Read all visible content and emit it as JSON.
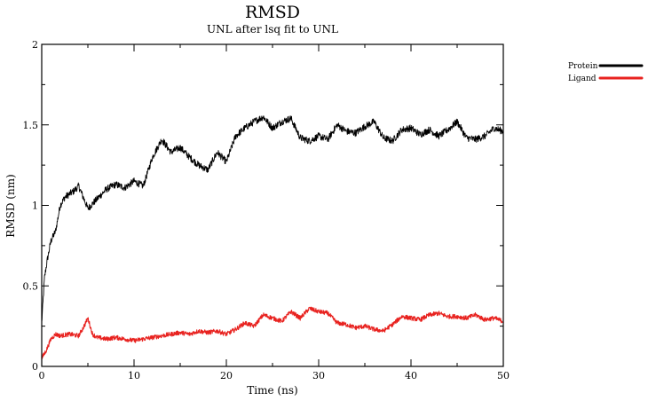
{
  "chart_data": {
    "type": "line",
    "title": "RMSD",
    "subtitle": "UNL after lsq fit to UNL",
    "xlabel": "Time (ns)",
    "ylabel": "RMSD (nm)",
    "xlim": [
      0,
      50
    ],
    "ylim": [
      0,
      2
    ],
    "xticks": [
      0,
      10,
      20,
      30,
      40,
      50
    ],
    "xtick_labels": [
      "0",
      "10",
      "20",
      "30",
      "40",
      "50"
    ],
    "yticks": [
      0,
      0.5,
      1,
      1.5,
      2
    ],
    "ytick_labels": [
      "0",
      "0.5",
      "1",
      "1.5",
      "2"
    ],
    "grid": false,
    "legend_placement": "outside-right-top",
    "series": [
      {
        "name": "Protein",
        "color": "#000000",
        "x": [
          0,
          0.3,
          0.6,
          1,
          1.5,
          2,
          2.5,
          3,
          3.5,
          4,
          5,
          6,
          7,
          8,
          9,
          10,
          11,
          12,
          13,
          14,
          15,
          16,
          17,
          18,
          19,
          20,
          21,
          22,
          23,
          24,
          25,
          26,
          27,
          28,
          29,
          30,
          31,
          32,
          33,
          34,
          35,
          36,
          37,
          38,
          39,
          40,
          41,
          42,
          43,
          44,
          45,
          46,
          47,
          48,
          49,
          50
        ],
        "y": [
          0.27,
          0.55,
          0.66,
          0.78,
          0.84,
          1.0,
          1.05,
          1.07,
          1.09,
          1.12,
          0.98,
          1.04,
          1.1,
          1.13,
          1.11,
          1.15,
          1.12,
          1.3,
          1.41,
          1.33,
          1.36,
          1.3,
          1.25,
          1.22,
          1.33,
          1.27,
          1.43,
          1.48,
          1.52,
          1.55,
          1.48,
          1.52,
          1.54,
          1.42,
          1.4,
          1.43,
          1.41,
          1.5,
          1.46,
          1.45,
          1.49,
          1.52,
          1.42,
          1.4,
          1.47,
          1.48,
          1.44,
          1.47,
          1.43,
          1.47,
          1.52,
          1.42,
          1.41,
          1.43,
          1.48,
          1.46
        ]
      },
      {
        "name": "Ligand",
        "color": "#e8221f",
        "x": [
          0,
          0.5,
          1,
          1.5,
          2,
          3,
          4,
          4.5,
          5,
          5.5,
          6,
          7,
          8,
          9,
          10,
          11,
          12,
          13,
          14,
          15,
          16,
          17,
          18,
          19,
          20,
          21,
          22,
          23,
          24,
          25,
          26,
          27,
          28,
          29,
          30,
          31,
          32,
          33,
          34,
          35,
          36,
          37,
          38,
          39,
          40,
          41,
          42,
          43,
          44,
          45,
          46,
          47,
          48,
          49,
          50
        ],
        "y": [
          0.05,
          0.1,
          0.17,
          0.2,
          0.19,
          0.2,
          0.19,
          0.24,
          0.3,
          0.2,
          0.18,
          0.17,
          0.18,
          0.17,
          0.16,
          0.17,
          0.18,
          0.19,
          0.2,
          0.21,
          0.2,
          0.22,
          0.21,
          0.22,
          0.2,
          0.23,
          0.27,
          0.25,
          0.32,
          0.3,
          0.28,
          0.34,
          0.3,
          0.36,
          0.34,
          0.33,
          0.27,
          0.26,
          0.24,
          0.25,
          0.23,
          0.22,
          0.26,
          0.31,
          0.3,
          0.29,
          0.32,
          0.33,
          0.31,
          0.31,
          0.3,
          0.32,
          0.29,
          0.3,
          0.28
        ]
      }
    ]
  }
}
